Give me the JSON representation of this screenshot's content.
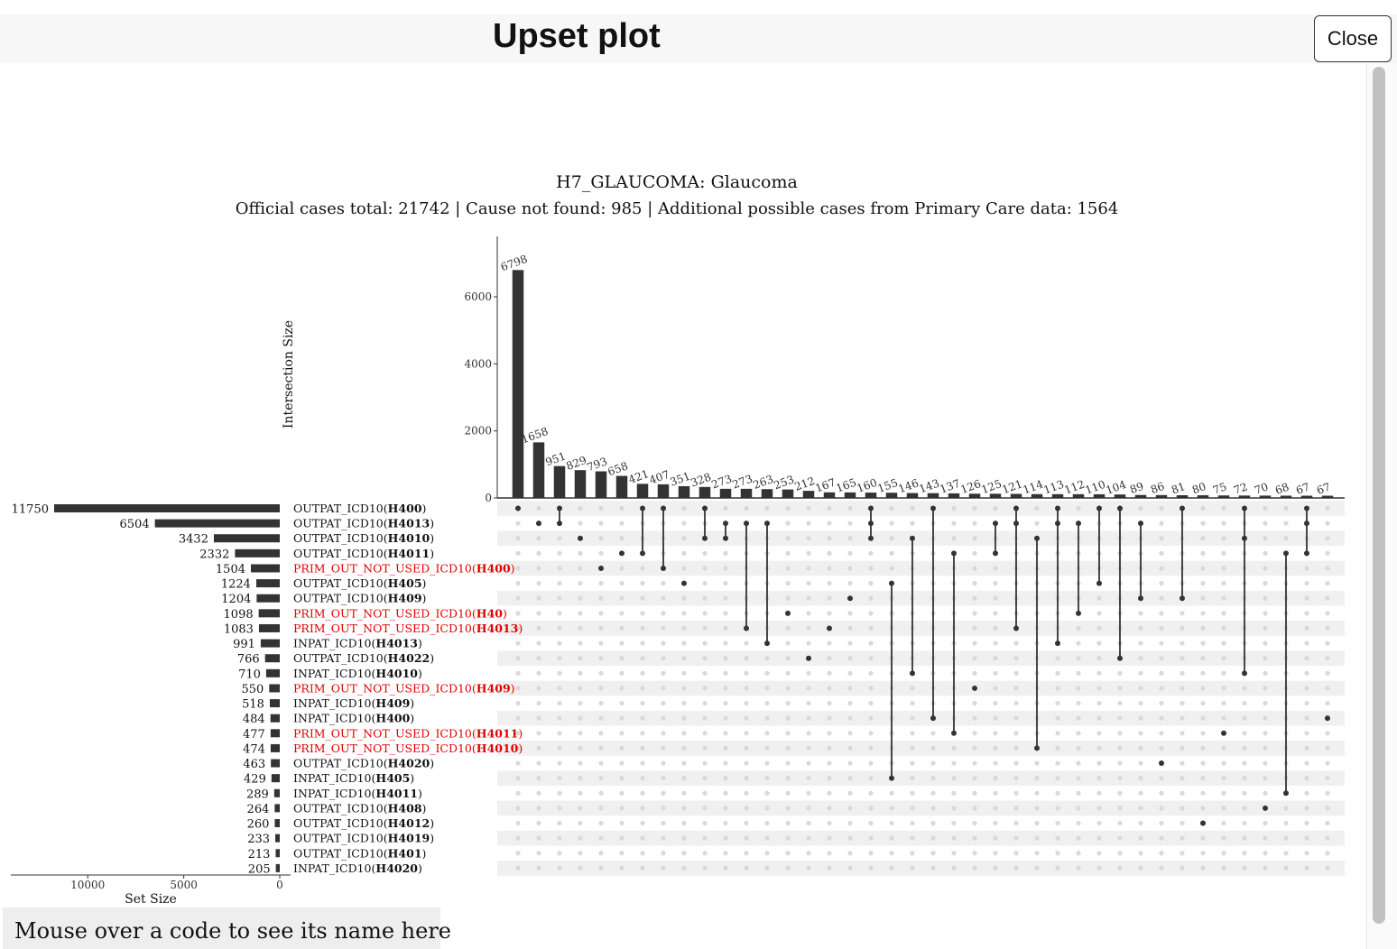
{
  "page": {
    "title": "Upset plot",
    "close_label": "Close",
    "footer_text": "Mouse over a code to see its name here"
  },
  "chart_data": {
    "type": "upset",
    "title": "H7_GLAUCOMA: Glaucoma",
    "subtitle": "Official cases total: 21742  | Cause not found: 985  | Additional possible cases from Primary Care data: 1564",
    "ylabel": "Intersection Size",
    "xlabel_sets": "Set Size",
    "y_ticks": [
      0,
      2000,
      4000,
      6000
    ],
    "set_size_ticks": [
      10000,
      5000,
      0
    ],
    "set_size_max": 13000,
    "y_max": 7000,
    "colors": {
      "bar": "#333333",
      "dot_active": "#333333",
      "dot_inactive": "#d9d9d9",
      "row_stripe": "#f0f0f0",
      "highlight": "#e00000"
    },
    "sets": [
      {
        "prefix": "OUTPAT_ICD10(",
        "code": "H400",
        "suffix": ")",
        "size": 11750,
        "highlight": false
      },
      {
        "prefix": "OUTPAT_ICD10(",
        "code": "H4013",
        "suffix": ")",
        "size": 6504,
        "highlight": false
      },
      {
        "prefix": "OUTPAT_ICD10(",
        "code": "H4010",
        "suffix": ")",
        "size": 3432,
        "highlight": false
      },
      {
        "prefix": "OUTPAT_ICD10(",
        "code": "H4011",
        "suffix": ")",
        "size": 2332,
        "highlight": false
      },
      {
        "prefix": "PRIM_OUT_NOT_USED_ICD10(",
        "code": "H400",
        "suffix": ")",
        "size": 1504,
        "highlight": true
      },
      {
        "prefix": "OUTPAT_ICD10(",
        "code": "H405",
        "suffix": ")",
        "size": 1224,
        "highlight": false
      },
      {
        "prefix": "OUTPAT_ICD10(",
        "code": "H409",
        "suffix": ")",
        "size": 1204,
        "highlight": false
      },
      {
        "prefix": "PRIM_OUT_NOT_USED_ICD10(",
        "code": "H40",
        "suffix": ")",
        "size": 1098,
        "highlight": true
      },
      {
        "prefix": "PRIM_OUT_NOT_USED_ICD10(",
        "code": "H4013",
        "suffix": ")",
        "size": 1083,
        "highlight": true
      },
      {
        "prefix": "INPAT_ICD10(",
        "code": "H4013",
        "suffix": ")",
        "size": 991,
        "highlight": false
      },
      {
        "prefix": "OUTPAT_ICD10(",
        "code": "H4022",
        "suffix": ")",
        "size": 766,
        "highlight": false
      },
      {
        "prefix": "INPAT_ICD10(",
        "code": "H4010",
        "suffix": ")",
        "size": 710,
        "highlight": false
      },
      {
        "prefix": "PRIM_OUT_NOT_USED_ICD10(",
        "code": "H409",
        "suffix": ")",
        "size": 550,
        "highlight": true
      },
      {
        "prefix": "INPAT_ICD10(",
        "code": "H409",
        "suffix": ")",
        "size": 518,
        "highlight": false
      },
      {
        "prefix": "INPAT_ICD10(",
        "code": "H400",
        "suffix": ")",
        "size": 484,
        "highlight": false
      },
      {
        "prefix": "PRIM_OUT_NOT_USED_ICD10(",
        "code": "H4011",
        "suffix": ")",
        "size": 477,
        "highlight": true
      },
      {
        "prefix": "PRIM_OUT_NOT_USED_ICD10(",
        "code": "H4010",
        "suffix": ")",
        "size": 474,
        "highlight": true
      },
      {
        "prefix": "OUTPAT_ICD10(",
        "code": "H4020",
        "suffix": ")",
        "size": 463,
        "highlight": false
      },
      {
        "prefix": "INPAT_ICD10(",
        "code": "H405",
        "suffix": ")",
        "size": 429,
        "highlight": false
      },
      {
        "prefix": "INPAT_ICD10(",
        "code": "H4011",
        "suffix": ")",
        "size": 289,
        "highlight": false
      },
      {
        "prefix": "OUTPAT_ICD10(",
        "code": "H408",
        "suffix": ")",
        "size": 264,
        "highlight": false
      },
      {
        "prefix": "OUTPAT_ICD10(",
        "code": "H4012",
        "suffix": ")",
        "size": 260,
        "highlight": false
      },
      {
        "prefix": "OUTPAT_ICD10(",
        "code": "H4019",
        "suffix": ")",
        "size": 233,
        "highlight": false
      },
      {
        "prefix": "OUTPAT_ICD10(",
        "code": "H401",
        "suffix": ")",
        "size": 213,
        "highlight": false
      },
      {
        "prefix": "INPAT_ICD10(",
        "code": "H4020",
        "suffix": ")",
        "size": 205,
        "highlight": false
      }
    ],
    "intersections": [
      {
        "size": 6798,
        "sets": [
          0
        ]
      },
      {
        "size": 1658,
        "sets": [
          1
        ]
      },
      {
        "size": 951,
        "sets": [
          0,
          1
        ]
      },
      {
        "size": 829,
        "sets": [
          2
        ]
      },
      {
        "size": 793,
        "sets": [
          4
        ]
      },
      {
        "size": 658,
        "sets": [
          3
        ]
      },
      {
        "size": 421,
        "sets": [
          0,
          3
        ]
      },
      {
        "size": 407,
        "sets": [
          0,
          4
        ]
      },
      {
        "size": 351,
        "sets": [
          5
        ]
      },
      {
        "size": 328,
        "sets": [
          0,
          2
        ]
      },
      {
        "size": 273,
        "sets": [
          1,
          2
        ]
      },
      {
        "size": 273,
        "sets": [
          1,
          8
        ]
      },
      {
        "size": 263,
        "sets": [
          1,
          9
        ]
      },
      {
        "size": 253,
        "sets": [
          7
        ]
      },
      {
        "size": 212,
        "sets": [
          10
        ]
      },
      {
        "size": 167,
        "sets": [
          8
        ]
      },
      {
        "size": 165,
        "sets": [
          6
        ]
      },
      {
        "size": 160,
        "sets": [
          0,
          1,
          2
        ]
      },
      {
        "size": 155,
        "sets": [
          5,
          18
        ]
      },
      {
        "size": 146,
        "sets": [
          2,
          11
        ]
      },
      {
        "size": 143,
        "sets": [
          0,
          14
        ]
      },
      {
        "size": 137,
        "sets": [
          3,
          15
        ]
      },
      {
        "size": 126,
        "sets": [
          12
        ]
      },
      {
        "size": 125,
        "sets": [
          1,
          3
        ]
      },
      {
        "size": 121,
        "sets": [
          0,
          1,
          8
        ]
      },
      {
        "size": 114,
        "sets": [
          2,
          16
        ]
      },
      {
        "size": 113,
        "sets": [
          0,
          1,
          9
        ]
      },
      {
        "size": 112,
        "sets": [
          1,
          7
        ]
      },
      {
        "size": 110,
        "sets": [
          0,
          5
        ]
      },
      {
        "size": 104,
        "sets": [
          0,
          10
        ]
      },
      {
        "size": 89,
        "sets": [
          1,
          6
        ]
      },
      {
        "size": 86,
        "sets": [
          17
        ]
      },
      {
        "size": 81,
        "sets": [
          0,
          6
        ]
      },
      {
        "size": 80,
        "sets": [
          21
        ]
      },
      {
        "size": 75,
        "sets": [
          15
        ]
      },
      {
        "size": 72,
        "sets": [
          0,
          2,
          11
        ]
      },
      {
        "size": 70,
        "sets": [
          20
        ]
      },
      {
        "size": 68,
        "sets": [
          3,
          19
        ]
      },
      {
        "size": 67,
        "sets": [
          0,
          1,
          3
        ]
      },
      {
        "size": 67,
        "sets": [
          14
        ]
      }
    ]
  }
}
